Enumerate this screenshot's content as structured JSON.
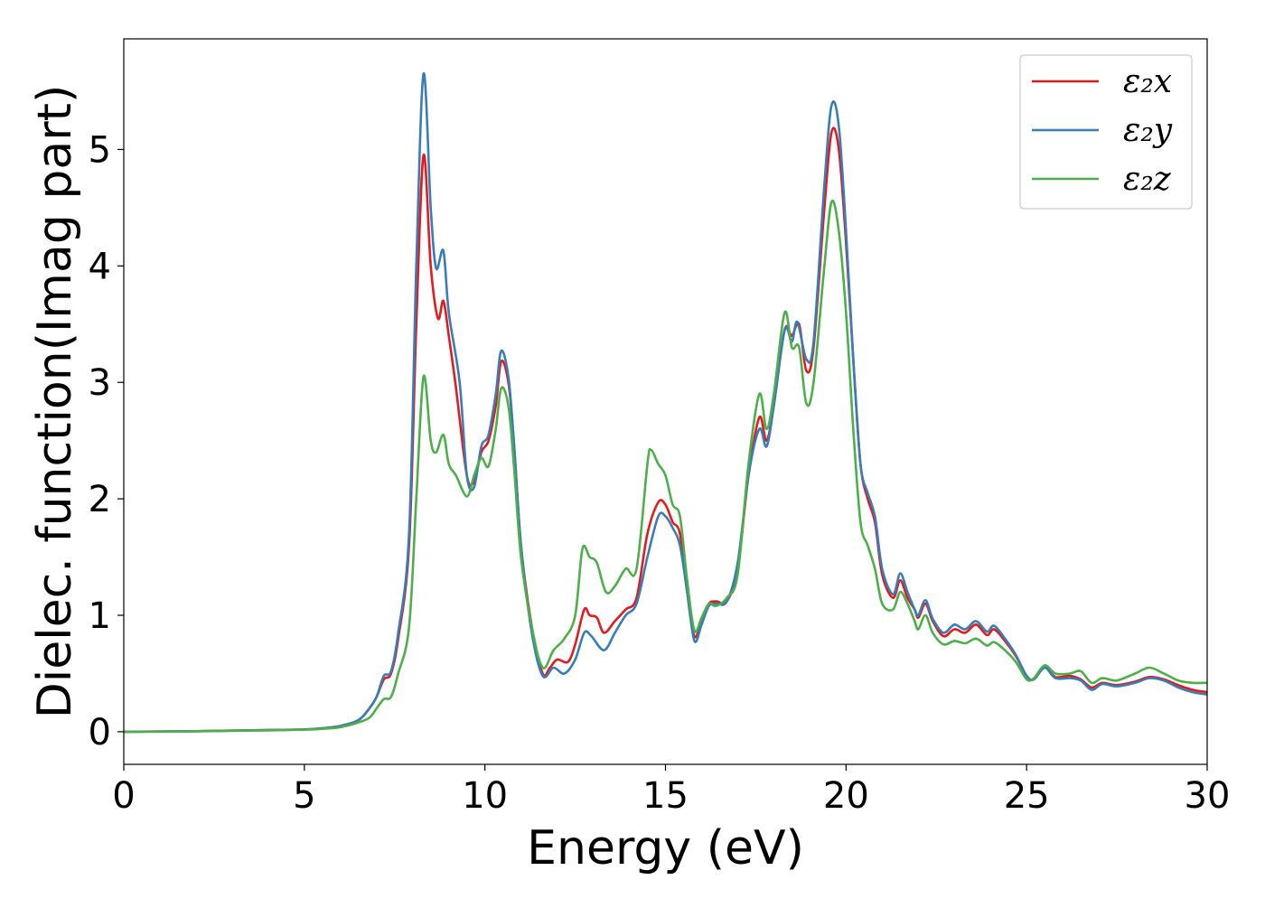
{
  "chart_data": {
    "type": "line",
    "title": "",
    "xlabel": "Energy (eV)",
    "ylabel": "Dielec. function(Imag part)",
    "xlim": [
      0,
      30
    ],
    "ylim": [
      -0.28,
      5.95
    ],
    "xticks": [
      0,
      5,
      10,
      15,
      20,
      25,
      30
    ],
    "yticks": [
      0,
      1,
      2,
      3,
      4,
      5
    ],
    "grid": false,
    "legend_position": "top-right",
    "series": [
      {
        "name": "ε₂x",
        "color": "#e41a1c",
        "points": [
          [
            0,
            0
          ],
          [
            2,
            0.005
          ],
          [
            4,
            0.015
          ],
          [
            5,
            0.02
          ],
          [
            5.5,
            0.03
          ],
          [
            6,
            0.05
          ],
          [
            6.5,
            0.1
          ],
          [
            6.8,
            0.2
          ],
          [
            7,
            0.3
          ],
          [
            7.2,
            0.45
          ],
          [
            7.4,
            0.5
          ],
          [
            7.6,
            0.8
          ],
          [
            7.9,
            1.6
          ],
          [
            8.1,
            3.5
          ],
          [
            8.3,
            4.95
          ],
          [
            8.5,
            4.0
          ],
          [
            8.7,
            3.55
          ],
          [
            8.85,
            3.7
          ],
          [
            9.0,
            3.4
          ],
          [
            9.2,
            2.95
          ],
          [
            9.5,
            2.2
          ],
          [
            9.7,
            2.15
          ],
          [
            9.9,
            2.4
          ],
          [
            10.1,
            2.5
          ],
          [
            10.3,
            2.8
          ],
          [
            10.45,
            3.18
          ],
          [
            10.65,
            3.0
          ],
          [
            10.8,
            2.5
          ],
          [
            11.0,
            1.6
          ],
          [
            11.3,
            0.9
          ],
          [
            11.6,
            0.5
          ],
          [
            11.8,
            0.55
          ],
          [
            12.0,
            0.62
          ],
          [
            12.3,
            0.6
          ],
          [
            12.5,
            0.75
          ],
          [
            12.75,
            1.05
          ],
          [
            12.9,
            1.0
          ],
          [
            13.1,
            0.98
          ],
          [
            13.3,
            0.85
          ],
          [
            13.6,
            0.95
          ],
          [
            13.9,
            1.05
          ],
          [
            14.2,
            1.15
          ],
          [
            14.5,
            1.7
          ],
          [
            14.8,
            1.97
          ],
          [
            15.0,
            1.95
          ],
          [
            15.2,
            1.8
          ],
          [
            15.4,
            1.7
          ],
          [
            15.6,
            1.2
          ],
          [
            15.8,
            0.82
          ],
          [
            16.0,
            0.95
          ],
          [
            16.2,
            1.1
          ],
          [
            16.4,
            1.12
          ],
          [
            16.7,
            1.12
          ],
          [
            17.0,
            1.4
          ],
          [
            17.3,
            2.2
          ],
          [
            17.6,
            2.7
          ],
          [
            17.8,
            2.5
          ],
          [
            18.0,
            2.8
          ],
          [
            18.3,
            3.45
          ],
          [
            18.5,
            3.4
          ],
          [
            18.7,
            3.5
          ],
          [
            18.9,
            3.1
          ],
          [
            19.1,
            3.3
          ],
          [
            19.4,
            4.5
          ],
          [
            19.6,
            5.15
          ],
          [
            19.8,
            5.0
          ],
          [
            20.0,
            4.2
          ],
          [
            20.2,
            3.2
          ],
          [
            20.4,
            2.3
          ],
          [
            20.6,
            2.0
          ],
          [
            20.8,
            1.8
          ],
          [
            21.0,
            1.35
          ],
          [
            21.3,
            1.15
          ],
          [
            21.5,
            1.3
          ],
          [
            21.7,
            1.15
          ],
          [
            21.9,
            1.05
          ],
          [
            22.0,
            0.98
          ],
          [
            22.2,
            1.1
          ],
          [
            22.4,
            0.95
          ],
          [
            22.7,
            0.82
          ],
          [
            23.0,
            0.88
          ],
          [
            23.3,
            0.85
          ],
          [
            23.6,
            0.92
          ],
          [
            23.9,
            0.83
          ],
          [
            24.1,
            0.88
          ],
          [
            24.4,
            0.78
          ],
          [
            24.7,
            0.65
          ],
          [
            25.0,
            0.48
          ],
          [
            25.2,
            0.45
          ],
          [
            25.5,
            0.55
          ],
          [
            25.8,
            0.47
          ],
          [
            26.2,
            0.48
          ],
          [
            26.5,
            0.45
          ],
          [
            26.8,
            0.38
          ],
          [
            27.1,
            0.42
          ],
          [
            27.5,
            0.4
          ],
          [
            28.0,
            0.43
          ],
          [
            28.4,
            0.47
          ],
          [
            28.8,
            0.45
          ],
          [
            29.2,
            0.4
          ],
          [
            29.6,
            0.36
          ],
          [
            30.0,
            0.34
          ]
        ]
      },
      {
        "name": "ε₂y",
        "color": "#377eb8",
        "points": [
          [
            0,
            0
          ],
          [
            2,
            0.005
          ],
          [
            4,
            0.015
          ],
          [
            5,
            0.02
          ],
          [
            5.5,
            0.03
          ],
          [
            6,
            0.05
          ],
          [
            6.5,
            0.1
          ],
          [
            6.8,
            0.2
          ],
          [
            7,
            0.3
          ],
          [
            7.2,
            0.48
          ],
          [
            7.4,
            0.52
          ],
          [
            7.6,
            0.85
          ],
          [
            7.9,
            1.7
          ],
          [
            8.1,
            4.0
          ],
          [
            8.3,
            5.65
          ],
          [
            8.5,
            4.5
          ],
          [
            8.65,
            3.98
          ],
          [
            8.85,
            4.13
          ],
          [
            9.0,
            3.6
          ],
          [
            9.3,
            3.0
          ],
          [
            9.5,
            2.2
          ],
          [
            9.7,
            2.1
          ],
          [
            9.9,
            2.45
          ],
          [
            10.1,
            2.55
          ],
          [
            10.3,
            2.9
          ],
          [
            10.45,
            3.27
          ],
          [
            10.65,
            3.05
          ],
          [
            10.8,
            2.5
          ],
          [
            11.0,
            1.6
          ],
          [
            11.3,
            0.85
          ],
          [
            11.6,
            0.48
          ],
          [
            11.9,
            0.55
          ],
          [
            12.2,
            0.5
          ],
          [
            12.5,
            0.62
          ],
          [
            12.75,
            0.85
          ],
          [
            12.95,
            0.82
          ],
          [
            13.3,
            0.7
          ],
          [
            13.6,
            0.85
          ],
          [
            13.9,
            1.0
          ],
          [
            14.2,
            1.1
          ],
          [
            14.5,
            1.5
          ],
          [
            14.8,
            1.85
          ],
          [
            15.0,
            1.85
          ],
          [
            15.2,
            1.75
          ],
          [
            15.4,
            1.6
          ],
          [
            15.6,
            1.2
          ],
          [
            15.8,
            0.78
          ],
          [
            16.0,
            0.92
          ],
          [
            16.2,
            1.08
          ],
          [
            16.4,
            1.1
          ],
          [
            16.7,
            1.12
          ],
          [
            17.0,
            1.45
          ],
          [
            17.3,
            2.2
          ],
          [
            17.6,
            2.6
          ],
          [
            17.8,
            2.45
          ],
          [
            18.0,
            2.8
          ],
          [
            18.3,
            3.45
          ],
          [
            18.5,
            3.35
          ],
          [
            18.65,
            3.52
          ],
          [
            18.9,
            3.2
          ],
          [
            19.1,
            3.35
          ],
          [
            19.4,
            4.7
          ],
          [
            19.6,
            5.38
          ],
          [
            19.8,
            5.2
          ],
          [
            20.0,
            4.3
          ],
          [
            20.2,
            3.2
          ],
          [
            20.4,
            2.3
          ],
          [
            20.6,
            2.05
          ],
          [
            20.8,
            1.85
          ],
          [
            21.0,
            1.4
          ],
          [
            21.3,
            1.18
          ],
          [
            21.5,
            1.36
          ],
          [
            21.7,
            1.2
          ],
          [
            21.9,
            1.05
          ],
          [
            22.0,
            1.0
          ],
          [
            22.2,
            1.13
          ],
          [
            22.4,
            0.97
          ],
          [
            22.7,
            0.85
          ],
          [
            23.0,
            0.92
          ],
          [
            23.3,
            0.88
          ],
          [
            23.6,
            0.95
          ],
          [
            23.9,
            0.86
          ],
          [
            24.1,
            0.91
          ],
          [
            24.4,
            0.8
          ],
          [
            24.7,
            0.66
          ],
          [
            25.0,
            0.48
          ],
          [
            25.2,
            0.45
          ],
          [
            25.5,
            0.55
          ],
          [
            25.8,
            0.46
          ],
          [
            26.2,
            0.46
          ],
          [
            26.5,
            0.44
          ],
          [
            26.8,
            0.36
          ],
          [
            27.1,
            0.41
          ],
          [
            27.5,
            0.39
          ],
          [
            28.0,
            0.42
          ],
          [
            28.4,
            0.46
          ],
          [
            28.8,
            0.44
          ],
          [
            29.2,
            0.38
          ],
          [
            29.6,
            0.34
          ],
          [
            30.0,
            0.32
          ]
        ]
      },
      {
        "name": "ε₂z",
        "color": "#4daf4a",
        "points": [
          [
            0,
            0
          ],
          [
            2,
            0.004
          ],
          [
            4,
            0.012
          ],
          [
            5,
            0.018
          ],
          [
            5.5,
            0.025
          ],
          [
            6,
            0.04
          ],
          [
            6.5,
            0.08
          ],
          [
            6.8,
            0.12
          ],
          [
            7,
            0.2
          ],
          [
            7.2,
            0.28
          ],
          [
            7.4,
            0.3
          ],
          [
            7.6,
            0.5
          ],
          [
            7.9,
            0.9
          ],
          [
            8.1,
            2.0
          ],
          [
            8.3,
            3.05
          ],
          [
            8.5,
            2.5
          ],
          [
            8.65,
            2.4
          ],
          [
            8.85,
            2.55
          ],
          [
            9.0,
            2.3
          ],
          [
            9.2,
            2.2
          ],
          [
            9.5,
            2.02
          ],
          [
            9.7,
            2.2
          ],
          [
            9.9,
            2.35
          ],
          [
            10.1,
            2.28
          ],
          [
            10.3,
            2.6
          ],
          [
            10.45,
            2.95
          ],
          [
            10.65,
            2.8
          ],
          [
            10.8,
            2.3
          ],
          [
            11.0,
            1.5
          ],
          [
            11.3,
            0.9
          ],
          [
            11.6,
            0.55
          ],
          [
            11.9,
            0.7
          ],
          [
            12.2,
            0.8
          ],
          [
            12.5,
            1.0
          ],
          [
            12.7,
            1.57
          ],
          [
            12.9,
            1.5
          ],
          [
            13.1,
            1.45
          ],
          [
            13.35,
            1.2
          ],
          [
            13.6,
            1.25
          ],
          [
            13.9,
            1.4
          ],
          [
            14.2,
            1.4
          ],
          [
            14.5,
            2.3
          ],
          [
            14.6,
            2.42
          ],
          [
            14.8,
            2.3
          ],
          [
            15.0,
            2.2
          ],
          [
            15.2,
            1.95
          ],
          [
            15.4,
            1.85
          ],
          [
            15.6,
            1.3
          ],
          [
            15.8,
            0.87
          ],
          [
            16.0,
            0.98
          ],
          [
            16.2,
            1.1
          ],
          [
            16.4,
            1.08
          ],
          [
            16.7,
            1.15
          ],
          [
            17.0,
            1.35
          ],
          [
            17.3,
            2.3
          ],
          [
            17.6,
            2.9
          ],
          [
            17.8,
            2.6
          ],
          [
            18.0,
            2.9
          ],
          [
            18.3,
            3.6
          ],
          [
            18.5,
            3.3
          ],
          [
            18.7,
            3.3
          ],
          [
            18.9,
            2.82
          ],
          [
            19.1,
            3.0
          ],
          [
            19.4,
            4.0
          ],
          [
            19.6,
            4.55
          ],
          [
            19.8,
            4.3
          ],
          [
            20.0,
            3.6
          ],
          [
            20.2,
            2.6
          ],
          [
            20.4,
            1.8
          ],
          [
            20.6,
            1.6
          ],
          [
            20.8,
            1.4
          ],
          [
            21.0,
            1.1
          ],
          [
            21.3,
            1.05
          ],
          [
            21.5,
            1.2
          ],
          [
            21.7,
            1.1
          ],
          [
            21.9,
            0.95
          ],
          [
            22.0,
            0.88
          ],
          [
            22.2,
            1.0
          ],
          [
            22.4,
            0.85
          ],
          [
            22.7,
            0.75
          ],
          [
            23.0,
            0.78
          ],
          [
            23.3,
            0.76
          ],
          [
            23.6,
            0.8
          ],
          [
            23.9,
            0.74
          ],
          [
            24.1,
            0.77
          ],
          [
            24.4,
            0.7
          ],
          [
            24.7,
            0.6
          ],
          [
            25.0,
            0.45
          ],
          [
            25.2,
            0.46
          ],
          [
            25.5,
            0.57
          ],
          [
            25.8,
            0.5
          ],
          [
            26.2,
            0.5
          ],
          [
            26.5,
            0.52
          ],
          [
            26.8,
            0.42
          ],
          [
            27.1,
            0.46
          ],
          [
            27.5,
            0.44
          ],
          [
            28.0,
            0.5
          ],
          [
            28.4,
            0.55
          ],
          [
            28.8,
            0.5
          ],
          [
            29.2,
            0.44
          ],
          [
            29.6,
            0.42
          ],
          [
            30.0,
            0.42
          ]
        ]
      }
    ]
  }
}
